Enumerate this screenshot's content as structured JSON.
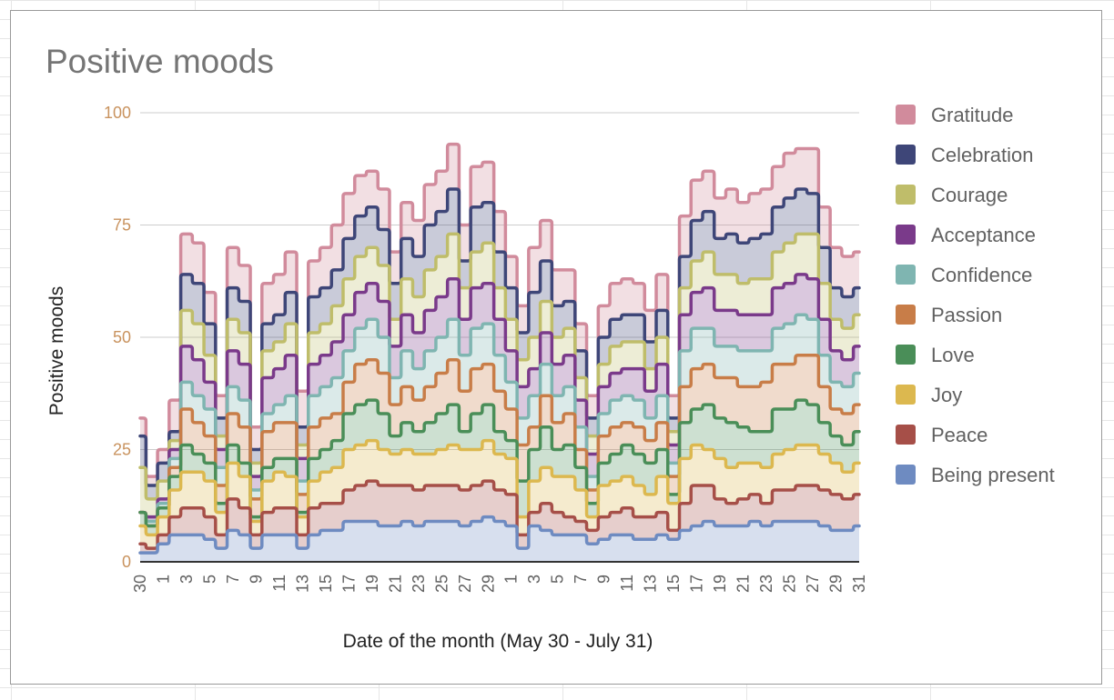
{
  "chart_data": {
    "type": "area",
    "stacked": true,
    "step": true,
    "title": "Positive moods",
    "xlabel": "Date of the month (May 30 - July 31)",
    "ylabel": "Positive moods",
    "ylim": [
      0,
      100
    ],
    "yticks": [
      0,
      25,
      50,
      75,
      100
    ],
    "grid": true,
    "legend_position": "right",
    "x": [
      "2020-05-30",
      "2020-05-31",
      "2020-06-01",
      "2020-06-02",
      "2020-06-03",
      "2020-06-04",
      "2020-06-05",
      "2020-06-06",
      "2020-06-07",
      "2020-06-08",
      "2020-06-09",
      "2020-06-10",
      "2020-06-11",
      "2020-06-12",
      "2020-06-13",
      "2020-06-14",
      "2020-06-15",
      "2020-06-16",
      "2020-06-17",
      "2020-06-18",
      "2020-06-19",
      "2020-06-20",
      "2020-06-21",
      "2020-06-22",
      "2020-06-23",
      "2020-06-24",
      "2020-06-25",
      "2020-06-26",
      "2020-06-27",
      "2020-06-28",
      "2020-06-29",
      "2020-06-30",
      "2020-07-01",
      "2020-07-02",
      "2020-07-03",
      "2020-07-04",
      "2020-07-05",
      "2020-07-06",
      "2020-07-07",
      "2020-07-08",
      "2020-07-09",
      "2020-07-10",
      "2020-07-11",
      "2020-07-12",
      "2020-07-13",
      "2020-07-14",
      "2020-07-15",
      "2020-07-16",
      "2020-07-17",
      "2020-07-18",
      "2020-07-19",
      "2020-07-20",
      "2020-07-21",
      "2020-07-22",
      "2020-07-23",
      "2020-07-24",
      "2020-07-25",
      "2020-07-26",
      "2020-07-27",
      "2020-07-28",
      "2020-07-29",
      "2020-07-30",
      "2020-07-31"
    ],
    "x_tick_labels": [
      "30",
      "1",
      "3",
      "5",
      "7",
      "9",
      "11",
      "13",
      "15",
      "17",
      "19",
      "21",
      "23",
      "25",
      "27",
      "29",
      "1",
      "3",
      "5",
      "7",
      "9",
      "11",
      "13",
      "15",
      "17",
      "19",
      "21",
      "23",
      "25",
      "27",
      "29",
      "31"
    ],
    "series": [
      {
        "name": "Being present",
        "color": "#6e8bc1",
        "values": [
          2,
          2,
          4,
          6,
          6,
          6,
          5,
          3,
          7,
          6,
          3,
          6,
          6,
          6,
          3,
          6,
          7,
          7,
          9,
          9,
          9,
          8,
          8,
          9,
          8,
          9,
          9,
          9,
          8,
          9,
          10,
          9,
          8,
          3,
          8,
          7,
          6,
          6,
          6,
          4,
          5,
          6,
          6,
          5,
          5,
          6,
          5,
          7,
          8,
          9,
          8,
          8,
          8,
          9,
          8,
          9,
          9,
          9,
          9,
          8,
          7,
          7,
          8
        ]
      },
      {
        "name": "Peace",
        "color": "#a64f48",
        "values": [
          2,
          1,
          2,
          4,
          6,
          6,
          5,
          3,
          7,
          6,
          3,
          5,
          6,
          6,
          3,
          6,
          6,
          6,
          7,
          8,
          9,
          9,
          9,
          8,
          8,
          8,
          8,
          8,
          8,
          8,
          8,
          7,
          7,
          3,
          3,
          6,
          5,
          4,
          3,
          3,
          5,
          5,
          6,
          5,
          5,
          5,
          2,
          6,
          9,
          8,
          6,
          5,
          6,
          6,
          5,
          7,
          7,
          8,
          8,
          8,
          8,
          7,
          7
        ]
      },
      {
        "name": "Joy",
        "color": "#dcb84f",
        "values": [
          4,
          3,
          4,
          6,
          8,
          8,
          8,
          5,
          8,
          7,
          3,
          7,
          8,
          7,
          4,
          6,
          7,
          8,
          9,
          9,
          9,
          8,
          7,
          8,
          8,
          7,
          8,
          9,
          9,
          8,
          9,
          8,
          8,
          4,
          7,
          8,
          8,
          9,
          7,
          3,
          7,
          7,
          7,
          7,
          5,
          8,
          6,
          10,
          9,
          8,
          9,
          8,
          8,
          7,
          8,
          8,
          9,
          9,
          9,
          8,
          7,
          6,
          7
        ]
      },
      {
        "name": "Love",
        "color": "#4a8e58",
        "values": [
          3,
          2,
          2,
          3,
          6,
          4,
          4,
          2,
          4,
          3,
          1,
          3,
          3,
          4,
          1,
          5,
          5,
          6,
          8,
          9,
          9,
          8,
          4,
          6,
          5,
          7,
          8,
          9,
          4,
          8,
          8,
          5,
          4,
          8,
          7,
          9,
          6,
          7,
          5,
          3,
          5,
          6,
          7,
          7,
          7,
          6,
          2,
          8,
          8,
          10,
          9,
          10,
          8,
          7,
          8,
          10,
          9,
          10,
          9,
          7,
          6,
          6,
          7
        ]
      },
      {
        "name": "Passion",
        "color": "#c87d48",
        "values": [
          0,
          0,
          0,
          2,
          8,
          7,
          6,
          4,
          7,
          8,
          4,
          8,
          8,
          8,
          4,
          7,
          7,
          6,
          7,
          9,
          9,
          9,
          7,
          8,
          7,
          8,
          9,
          10,
          9,
          10,
          9,
          9,
          7,
          8,
          5,
          7,
          6,
          7,
          4,
          3,
          6,
          6,
          5,
          6,
          5,
          6,
          4,
          8,
          9,
          9,
          9,
          10,
          9,
          10,
          11,
          10,
          10,
          10,
          11,
          8,
          6,
          7,
          6
        ]
      },
      {
        "name": "Confidence",
        "color": "#7fb5b1",
        "values": [
          0,
          1,
          1,
          2,
          6,
          6,
          6,
          4,
          6,
          6,
          2,
          4,
          4,
          6,
          3,
          7,
          7,
          8,
          7,
          8,
          9,
          8,
          6,
          8,
          7,
          8,
          8,
          9,
          8,
          9,
          9,
          8,
          6,
          6,
          7,
          7,
          6,
          6,
          5,
          3,
          5,
          6,
          6,
          6,
          5,
          6,
          3,
          8,
          9,
          8,
          7,
          7,
          8,
          8,
          7,
          8,
          9,
          9,
          8,
          7,
          6,
          6,
          7
        ]
      },
      {
        "name": "Acceptance",
        "color": "#7a3a8a",
        "values": [
          0,
          1,
          1,
          2,
          8,
          8,
          6,
          4,
          8,
          8,
          3,
          8,
          8,
          9,
          5,
          7,
          7,
          8,
          8,
          8,
          8,
          8,
          7,
          8,
          8,
          9,
          9,
          9,
          8,
          9,
          9,
          8,
          7,
          7,
          6,
          7,
          7,
          7,
          6,
          5,
          6,
          6,
          6,
          7,
          6,
          7,
          4,
          8,
          8,
          9,
          8,
          8,
          8,
          8,
          8,
          9,
          9,
          9,
          9,
          8,
          7,
          6,
          6
        ]
      },
      {
        "name": "Courage",
        "color": "#bfbd6a",
        "values": [
          10,
          4,
          4,
          2,
          8,
          8,
          6,
          3,
          7,
          7,
          3,
          6,
          6,
          7,
          3,
          7,
          7,
          8,
          8,
          8,
          8,
          8,
          6,
          8,
          8,
          9,
          9,
          10,
          7,
          8,
          9,
          7,
          7,
          6,
          7,
          7,
          6,
          6,
          5,
          4,
          5,
          6,
          6,
          6,
          5,
          6,
          3,
          6,
          7,
          8,
          8,
          8,
          7,
          8,
          8,
          8,
          9,
          9,
          10,
          8,
          7,
          7,
          7
        ]
      },
      {
        "name": "Celebration",
        "color": "#3e4678",
        "values": [
          7,
          3,
          4,
          2,
          8,
          9,
          7,
          4,
          7,
          7,
          3,
          6,
          6,
          7,
          4,
          8,
          8,
          8,
          9,
          9,
          9,
          8,
          8,
          9,
          9,
          10,
          10,
          10,
          6,
          10,
          9,
          8,
          7,
          6,
          10,
          9,
          7,
          6,
          6,
          4,
          6,
          6,
          6,
          6,
          6,
          6,
          3,
          7,
          9,
          9,
          8,
          9,
          9,
          9,
          10,
          10,
          10,
          10,
          9,
          8,
          7,
          7,
          6
        ]
      },
      {
        "name": "Gratitude",
        "color": "#d18b9c",
        "values": [
          4,
          2,
          3,
          7,
          9,
          9,
          7,
          5,
          9,
          8,
          5,
          9,
          9,
          9,
          8,
          8,
          9,
          10,
          10,
          9,
          8,
          9,
          7,
          8,
          8,
          9,
          9,
          10,
          8,
          9,
          9,
          9,
          7,
          6,
          10,
          9,
          8,
          7,
          6,
          5,
          7,
          8,
          8,
          7,
          7,
          8,
          5,
          9,
          9,
          9,
          9,
          10,
          9,
          10,
          10,
          9,
          10,
          9,
          10,
          9,
          9,
          9,
          8
        ]
      }
    ]
  }
}
